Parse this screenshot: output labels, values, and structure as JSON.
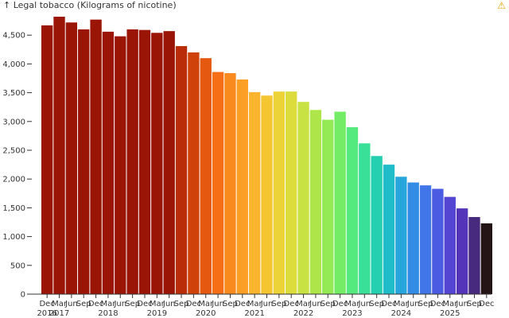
{
  "chart_data": {
    "type": "bar",
    "title": "",
    "ylabel": "Legal tobacco (Kilograms of nicotine)",
    "ylabel_arrow": "↑",
    "xlabel": "",
    "ylim": [
      0,
      5000
    ],
    "yticks": [
      0,
      500,
      1000,
      1500,
      2000,
      2500,
      3000,
      3500,
      4000,
      4500
    ],
    "ytick_labels": [
      "0",
      "500",
      "1,000",
      "1,500",
      "2,000",
      "2,500",
      "3,000",
      "3,500",
      "4,000",
      "4,500"
    ],
    "grid": false,
    "categories": [
      "Dec 2016",
      "Mar 2017",
      "Jun 2017",
      "Sep 2017",
      "Dec 2017",
      "Mar 2018",
      "Jun 2018",
      "Sep 2018",
      "Dec 2018",
      "Mar 2019",
      "Jun 2019",
      "Sep 2019",
      "Dec 2019",
      "Mar 2020",
      "Jun 2020",
      "Sep 2020",
      "Dec 2020",
      "Mar 2021",
      "Jun 2021",
      "Sep 2021",
      "Dec 2021",
      "Mar 2022",
      "Jun 2022",
      "Sep 2022",
      "Dec 2022",
      "Mar 2023",
      "Jun 2023",
      "Sep 2023",
      "Dec 2023",
      "Mar 2024",
      "Jun 2024",
      "Sep 2024",
      "Dec 2024",
      "Mar 2025",
      "Jun 2025",
      "Sep 2025",
      "Dec 2025"
    ],
    "tick_month_labels": [
      "Dec",
      "Mar",
      "Jun",
      "Sep",
      "Dec",
      "Mar",
      "Jun",
      "Sep",
      "Dec",
      "Mar",
      "Jun",
      "Sep",
      "Dec",
      "Mar",
      "Jun",
      "Sep",
      "Dec",
      "Mar",
      "Jun",
      "Sep",
      "Dec",
      "Mar",
      "Jun",
      "Sep",
      "Dec",
      "Mar",
      "Jun",
      "Sep",
      "Dec",
      "Mar",
      "Jun",
      "Sep",
      "Dec",
      "Mar",
      "Jun",
      "Sep",
      "Dec"
    ],
    "year_labels": [
      {
        "label": "2016",
        "index": 0
      },
      {
        "label": "2017",
        "index": 1
      },
      {
        "label": "2018",
        "index": 5
      },
      {
        "label": "2019",
        "index": 9
      },
      {
        "label": "2020",
        "index": 13
      },
      {
        "label": "2021",
        "index": 17
      },
      {
        "label": "2022",
        "index": 21
      },
      {
        "label": "2023",
        "index": 25
      },
      {
        "label": "2024",
        "index": 29
      },
      {
        "label": "2025",
        "index": 33
      }
    ],
    "values": [
      4670,
      4820,
      4720,
      4600,
      4770,
      4560,
      4480,
      4600,
      4590,
      4540,
      4570,
      4310,
      4200,
      4100,
      3860,
      3840,
      3730,
      3510,
      3450,
      3520,
      3520,
      3340,
      3200,
      3030,
      3170,
      2900,
      2620,
      2400,
      2250,
      2040,
      1940,
      1890,
      1830,
      1690,
      1490,
      1340,
      1230
    ],
    "colors": [
      "#9b1507",
      "#9b1507",
      "#9b1507",
      "#9b1507",
      "#9b1507",
      "#9b1507",
      "#9b1507",
      "#9b1507",
      "#9b1507",
      "#9b1507",
      "#9b1507",
      "#b92d08",
      "#cf420a",
      "#e5580f",
      "#f66f17",
      "#f98a1e",
      "#fb9f26",
      "#fbb42d",
      "#f5c532",
      "#ebd338",
      "#dcdd3c",
      "#c7e242",
      "#aee64a",
      "#93ea55",
      "#74ec66",
      "#55ea7e",
      "#38e098",
      "#25d0b1",
      "#1fbdc9",
      "#27a6db",
      "#348de5",
      "#4076e8",
      "#4c5ce2",
      "#5445d3",
      "#5434b8",
      "#47297e",
      "#241416"
    ],
    "warning_icon": "warning-icon"
  }
}
